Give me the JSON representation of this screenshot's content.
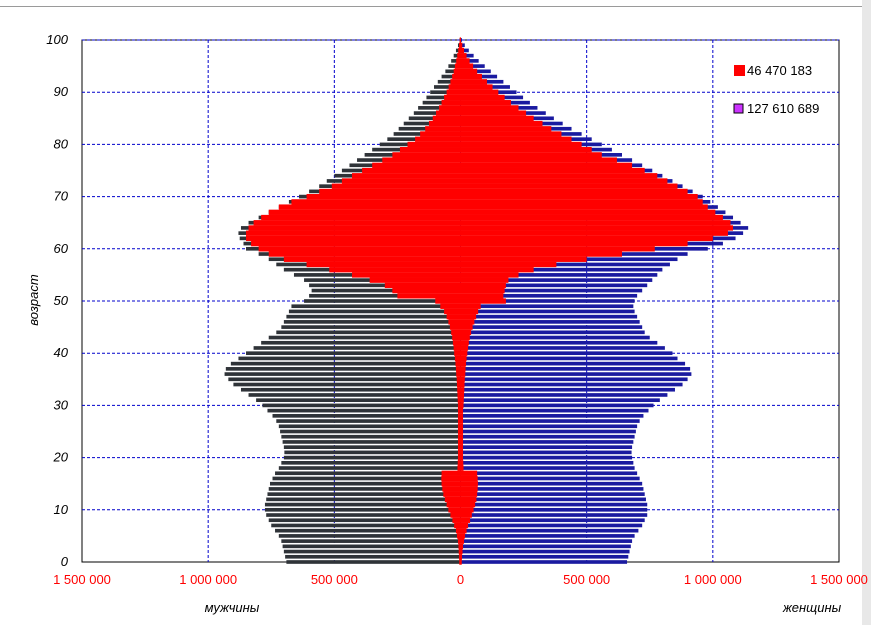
{
  "chart_data": {
    "type": "bar",
    "orientation": "horizontal",
    "subtype": "population-pyramid",
    "xlim": [
      -1500000,
      1500000
    ],
    "ylim": [
      0,
      100
    ],
    "x_ticks": [
      {
        "value": -1500000,
        "label": "1 500 000"
      },
      {
        "value": -1000000,
        "label": "1 000 000"
      },
      {
        "value": -500000,
        "label": "500 000"
      },
      {
        "value": 0,
        "label": "0"
      },
      {
        "value": 500000,
        "label": "500 000"
      },
      {
        "value": 1000000,
        "label": "1 000 000"
      },
      {
        "value": 1500000,
        "label": "1 500 000"
      }
    ],
    "y_ticks": [
      0,
      10,
      20,
      30,
      40,
      50,
      60,
      70,
      80,
      90,
      100
    ],
    "ylabel": "возраст",
    "xlabel_left": "мужчины",
    "xlabel_right": "женщины",
    "grid": true,
    "legend_position": "top-right",
    "ages": [
      0,
      1,
      2,
      3,
      4,
      5,
      6,
      7,
      8,
      9,
      10,
      11,
      12,
      13,
      14,
      15,
      16,
      17,
      18,
      19,
      20,
      21,
      22,
      23,
      24,
      25,
      26,
      27,
      28,
      29,
      30,
      31,
      32,
      33,
      34,
      35,
      36,
      37,
      38,
      39,
      40,
      41,
      42,
      43,
      44,
      45,
      46,
      47,
      48,
      49,
      50,
      51,
      52,
      53,
      54,
      55,
      56,
      57,
      58,
      59,
      60,
      61,
      62,
      63,
      64,
      65,
      66,
      67,
      68,
      69,
      70,
      71,
      72,
      73,
      74,
      75,
      76,
      77,
      78,
      79,
      80,
      81,
      82,
      83,
      84,
      85,
      86,
      87,
      88,
      89,
      90,
      91,
      92,
      93,
      94,
      95,
      96,
      97,
      98,
      99,
      100
    ],
    "series": [
      {
        "name": "127 610 689",
        "color_male": "#2f3338",
        "color_female": "#1a1aa0",
        "male": [
          690000,
          695000,
          700000,
          705000,
          710000,
          720000,
          735000,
          750000,
          760000,
          770000,
          775000,
          775000,
          770000,
          765000,
          760000,
          755000,
          745000,
          735000,
          720000,
          710000,
          700000,
          698000,
          700000,
          705000,
          710000,
          715000,
          720000,
          730000,
          745000,
          765000,
          785000,
          810000,
          840000,
          870000,
          900000,
          920000,
          935000,
          930000,
          910000,
          880000,
          850000,
          820000,
          790000,
          760000,
          730000,
          710000,
          700000,
          690000,
          680000,
          670000,
          620000,
          600000,
          590000,
          600000,
          620000,
          660000,
          700000,
          730000,
          760000,
          800000,
          850000,
          860000,
          875000,
          880000,
          870000,
          840000,
          800000,
          760000,
          720000,
          680000,
          640000,
          600000,
          560000,
          530000,
          500000,
          470000,
          440000,
          410000,
          380000,
          350000,
          320000,
          290000,
          265000,
          245000,
          225000,
          205000,
          185000,
          168000,
          150000,
          135000,
          120000,
          105000,
          90000,
          75000,
          60000,
          48000,
          37000,
          27000,
          18000,
          10000,
          4000
        ],
        "female": [
          660000,
          665000,
          670000,
          675000,
          680000,
          690000,
          705000,
          720000,
          730000,
          740000,
          740000,
          740000,
          735000,
          730000,
          725000,
          720000,
          710000,
          700000,
          690000,
          685000,
          680000,
          678000,
          680000,
          685000,
          690000,
          695000,
          700000,
          710000,
          725000,
          745000,
          765000,
          790000,
          820000,
          850000,
          880000,
          900000,
          915000,
          910000,
          890000,
          860000,
          840000,
          810000,
          780000,
          750000,
          730000,
          720000,
          710000,
          700000,
          690000,
          685000,
          690000,
          700000,
          720000,
          740000,
          760000,
          780000,
          800000,
          830000,
          860000,
          900000,
          980000,
          1040000,
          1090000,
          1120000,
          1140000,
          1110000,
          1080000,
          1050000,
          1020000,
          990000,
          960000,
          920000,
          880000,
          840000,
          800000,
          760000,
          720000,
          680000,
          640000,
          600000,
          560000,
          520000,
          480000,
          440000,
          405000,
          370000,
          338000,
          305000,
          275000,
          248000,
          222000,
          196000,
          170000,
          145000,
          120000,
          96000,
          72000,
          52000,
          33000,
          17000,
          6000
        ]
      },
      {
        "name": "46 470 183",
        "color": "#ff0000",
        "male": [
          5000,
          6000,
          7000,
          8000,
          10000,
          14000,
          18000,
          25000,
          32000,
          40000,
          48000,
          55000,
          62000,
          68000,
          72000,
          75000,
          76000,
          75000,
          12000,
          11000,
          10000,
          10000,
          10000,
          10000,
          10000,
          10000,
          10000,
          10000,
          10000,
          10000,
          10000,
          11000,
          12000,
          13000,
          14000,
          15000,
          17000,
          18000,
          20000,
          22000,
          25000,
          27000,
          30000,
          33000,
          37000,
          42000,
          48000,
          55000,
          65000,
          80000,
          100000,
          250000,
          270000,
          300000,
          360000,
          430000,
          520000,
          610000,
          700000,
          760000,
          800000,
          830000,
          850000,
          850000,
          840000,
          820000,
          790000,
          760000,
          720000,
          670000,
          610000,
          560000,
          510000,
          470000,
          430000,
          390000,
          350000,
          310000,
          270000,
          240000,
          210000,
          180000,
          160000,
          140000,
          125000,
          110000,
          97000,
          85000,
          75000,
          65000,
          55000,
          47000,
          40000,
          33000,
          27000,
          22000,
          17000,
          13000,
          9000,
          6000,
          3000
        ],
        "female": [
          5000,
          6000,
          8000,
          10000,
          14000,
          18000,
          24000,
          30000,
          38000,
          45000,
          52000,
          58000,
          63000,
          66000,
          68000,
          69000,
          68000,
          66000,
          12000,
          11000,
          10000,
          10000,
          10000,
          10000,
          10000,
          10000,
          10000,
          10000,
          10000,
          10000,
          12000,
          13000,
          14000,
          15000,
          16000,
          17000,
          19000,
          20000,
          22000,
          24000,
          27000,
          30000,
          33000,
          37000,
          42000,
          48000,
          55000,
          62000,
          70000,
          80000,
          180000,
          170000,
          175000,
          180000,
          190000,
          230000,
          290000,
          380000,
          500000,
          640000,
          770000,
          900000,
          1000000,
          1060000,
          1080000,
          1070000,
          1040000,
          1010000,
          980000,
          960000,
          940000,
          900000,
          860000,
          820000,
          780000,
          730000,
          680000,
          620000,
          560000,
          520000,
          480000,
          440000,
          400000,
          360000,
          325000,
          290000,
          260000,
          230000,
          200000,
          175000,
          150000,
          127000,
          105000,
          85000,
          66000,
          50000,
          36000,
          24000,
          14000,
          7000,
          2000
        ]
      }
    ]
  }
}
